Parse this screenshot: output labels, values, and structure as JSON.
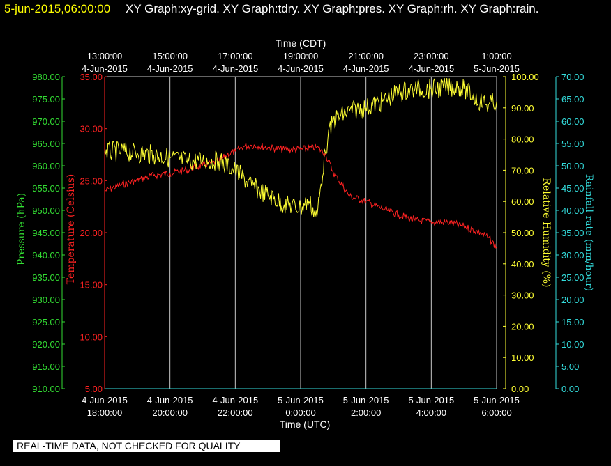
{
  "header": {
    "date": "5-jun-2015,06:00:00",
    "graphs": "XY Graph:xy-grid.  XY Graph:tdry.  XY Graph:pres.  XY Graph:rh.  XY Graph:rain."
  },
  "qc_notice": "REAL-TIME DATA, NOT CHECKED FOR QUALITY",
  "colors": {
    "temperature": "#ff2222",
    "humidity": "#ffff33",
    "pressure": "#33dd33",
    "rainfall": "#33dddd",
    "grid": "#c8c8c8",
    "background": "#000000"
  },
  "chart_data": {
    "type": "line",
    "grid": true,
    "x_top": {
      "label": "Time (CDT)",
      "ticks": [
        {
          "time": "13:00:00",
          "date": "4-Jun-2015"
        },
        {
          "time": "15:00:00",
          "date": "4-Jun-2015"
        },
        {
          "time": "17:00:00",
          "date": "4-Jun-2015"
        },
        {
          "time": "19:00:00",
          "date": "4-Jun-2015"
        },
        {
          "time": "21:00:00",
          "date": "4-Jun-2015"
        },
        {
          "time": "23:00:00",
          "date": "4-Jun-2015"
        },
        {
          "time": "1:00:00",
          "date": "5-Jun-2015"
        }
      ]
    },
    "x_bottom": {
      "label": "Time (UTC)",
      "ticks": [
        {
          "date": "4-Jun-2015",
          "time": "18:00:00"
        },
        {
          "date": "4-Jun-2015",
          "time": "20:00:00"
        },
        {
          "date": "4-Jun-2015",
          "time": "22:00:00"
        },
        {
          "date": "5-Jun-2015",
          "time": "0:00:00"
        },
        {
          "date": "5-Jun-2015",
          "time": "2:00:00"
        },
        {
          "date": "5-Jun-2015",
          "time": "4:00:00"
        },
        {
          "date": "5-Jun-2015",
          "time": "6:00:00"
        }
      ]
    },
    "x_range_utc": [
      "2015-06-04 18:00:00",
      "2015-06-05 06:00:00"
    ],
    "y_axes": {
      "pressure": {
        "label": "Pressure (hPa)",
        "range": [
          910,
          980
        ],
        "ticks": [
          "910.00",
          "915.00",
          "920.00",
          "925.00",
          "930.00",
          "935.00",
          "940.00",
          "945.00",
          "950.00",
          "955.00",
          "960.00",
          "965.00",
          "970.00",
          "975.00",
          "980.00"
        ]
      },
      "temperature": {
        "label": "Temperature (Celsius)",
        "range": [
          5,
          35
        ],
        "ticks": [
          "5.00",
          "10.00",
          "15.00",
          "20.00",
          "25.00",
          "30.00",
          "35.00"
        ]
      },
      "humidity": {
        "label": "Relative Humidity (%)",
        "range": [
          0,
          100
        ],
        "ticks": [
          "0.00",
          "10.00",
          "20.00",
          "30.00",
          "40.00",
          "50.00",
          "60.00",
          "70.00",
          "80.00",
          "90.00",
          "100.00"
        ]
      },
      "rainfall": {
        "label": "Rainfall rate (mm/hour)",
        "range": [
          0,
          70
        ],
        "ticks": [
          "0.00",
          "5.00",
          "10.00",
          "15.00",
          "20.00",
          "25.00",
          "30.00",
          "35.00",
          "40.00",
          "45.00",
          "50.00",
          "55.00",
          "60.00",
          "65.00",
          "70.00"
        ]
      }
    },
    "series": [
      {
        "name": "tdry",
        "axis": "temperature",
        "x": [
          "2015-06-04 18:00",
          "2015-06-04 18:30",
          "2015-06-04 19:00",
          "2015-06-04 19:30",
          "2015-06-04 20:00",
          "2015-06-04 20:30",
          "2015-06-04 21:00",
          "2015-06-04 21:30",
          "2015-06-04 21:45",
          "2015-06-04 22:00",
          "2015-06-04 22:15",
          "2015-06-04 22:30",
          "2015-06-04 23:00",
          "2015-06-04 23:30",
          "2015-06-05 00:00",
          "2015-06-05 00:30",
          "2015-06-05 00:45",
          "2015-06-05 01:00",
          "2015-06-05 01:30",
          "2015-06-05 02:00",
          "2015-06-05 02:30",
          "2015-06-05 03:00",
          "2015-06-05 03:30",
          "2015-06-05 04:00",
          "2015-06-05 04:30",
          "2015-06-05 05:00",
          "2015-06-05 05:30",
          "2015-06-05 05:45",
          "2015-06-05 06:00"
        ],
        "y": [
          24.0,
          24.6,
          25.0,
          25.5,
          25.7,
          26.0,
          26.5,
          26.8,
          27.5,
          27.8,
          28.3,
          28.4,
          28.2,
          28.0,
          28.0,
          28.2,
          27.6,
          25.8,
          23.5,
          23.0,
          22.3,
          21.7,
          21.2,
          21.0,
          21.0,
          20.6,
          20.0,
          19.5,
          18.6
        ]
      },
      {
        "name": "rh",
        "axis": "humidity",
        "x": [
          "2015-06-04 18:00",
          "2015-06-04 18:30",
          "2015-06-04 19:00",
          "2015-06-04 19:30",
          "2015-06-04 20:00",
          "2015-06-04 20:30",
          "2015-06-04 21:00",
          "2015-06-04 21:30",
          "2015-06-04 22:00",
          "2015-06-04 22:30",
          "2015-06-04 23:00",
          "2015-06-04 23:30",
          "2015-06-05 00:00",
          "2015-06-05 00:15",
          "2015-06-05 00:30",
          "2015-06-05 00:45",
          "2015-06-05 00:50",
          "2015-06-05 01:00",
          "2015-06-05 01:30",
          "2015-06-05 02:00",
          "2015-06-05 02:30",
          "2015-06-05 03:00",
          "2015-06-05 03:30",
          "2015-06-05 04:00",
          "2015-06-05 04:30",
          "2015-06-05 04:50",
          "2015-06-05 05:00",
          "2015-06-05 05:15",
          "2015-06-05 05:30",
          "2015-06-05 05:45",
          "2015-06-05 06:00"
        ],
        "y": [
          76,
          76,
          75.5,
          75,
          74,
          73,
          73,
          73,
          70,
          65,
          62,
          59,
          58,
          60,
          55,
          76,
          80,
          86,
          89,
          90,
          92,
          95,
          96,
          96,
          96.5,
          97,
          96,
          94,
          92,
          91,
          92
        ]
      },
      {
        "name": "pres",
        "axis": "pressure",
        "x": [],
        "y": []
      },
      {
        "name": "rain",
        "axis": "rainfall",
        "x": [
          "2015-06-04 18:00",
          "2015-06-05 06:00"
        ],
        "y": [
          0,
          0
        ]
      }
    ]
  }
}
